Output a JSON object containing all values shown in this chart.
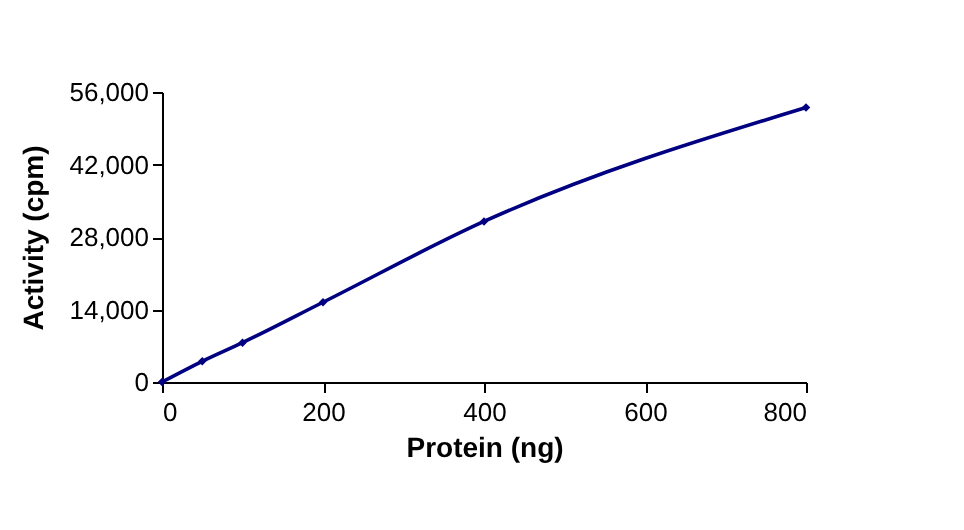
{
  "chart_data": {
    "type": "line",
    "xlabel": "Protein (ng)",
    "ylabel": "Activity (cpm)",
    "x": [
      0,
      50,
      100,
      200,
      400,
      800
    ],
    "series": [
      {
        "color": "#000080",
        "values": [
          0,
          4000,
          7600,
          15400,
          31000,
          53000
        ]
      }
    ],
    "xlim": [
      0,
      800
    ],
    "xticks": [
      0,
      200,
      400,
      600,
      800
    ],
    "ylim": [
      0,
      56000
    ],
    "yticks": [
      {
        "value": 0,
        "label": "0"
      },
      {
        "value": 14000,
        "label": "14,000"
      },
      {
        "value": 28000,
        "label": "28,000"
      },
      {
        "value": 42000,
        "label": "42,000"
      },
      {
        "value": 56000,
        "label": "56,000"
      }
    ],
    "grid": false,
    "marker": "diamond",
    "line_style": "solid"
  }
}
